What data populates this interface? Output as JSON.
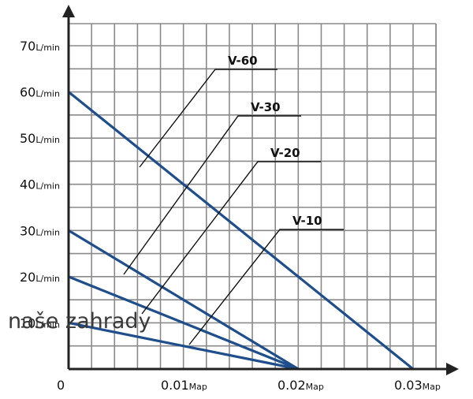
{
  "chart_data": {
    "type": "line",
    "title": "",
    "xlabel": "",
    "ylabel": "",
    "x_unit": "Map",
    "y_unit": "L/min",
    "xlim": [
      0,
      0.03
    ],
    "ylim": [
      0,
      70
    ],
    "grid": true,
    "x_ticks": [
      {
        "value": 0,
        "label": "0",
        "unit": ""
      },
      {
        "value": 0.01,
        "label": "0.01",
        "unit": "Map"
      },
      {
        "value": 0.02,
        "label": "0.02",
        "unit": "Map"
      },
      {
        "value": 0.03,
        "label": "0.03",
        "unit": "Map"
      }
    ],
    "y_ticks": [
      {
        "value": 10,
        "label": "10",
        "unit": "L/min"
      },
      {
        "value": 20,
        "label": "20",
        "unit": "L/min"
      },
      {
        "value": 30,
        "label": "30",
        "unit": "L/min"
      },
      {
        "value": 40,
        "label": "40",
        "unit": "L/min"
      },
      {
        "value": 50,
        "label": "50",
        "unit": "L/min"
      },
      {
        "value": 60,
        "label": "60",
        "unit": "L/min"
      },
      {
        "value": 70,
        "label": "70",
        "unit": "L/min"
      }
    ],
    "series": [
      {
        "name": "V-60",
        "color": "#1f4e8c",
        "points": [
          [
            0,
            60
          ],
          [
            0.03,
            0
          ]
        ]
      },
      {
        "name": "V-30",
        "color": "#1f4e8c",
        "points": [
          [
            0,
            30
          ],
          [
            0.02,
            0
          ]
        ]
      },
      {
        "name": "V-20",
        "color": "#1f4e8c",
        "points": [
          [
            0,
            20
          ],
          [
            0.02,
            0
          ]
        ]
      },
      {
        "name": "V-10",
        "color": "#1f4e8c",
        "points": [
          [
            0,
            10
          ],
          [
            0.02,
            0
          ]
        ]
      }
    ],
    "grid_color": "#8a8a8a",
    "axis_color": "#222222"
  },
  "watermark": "naše zahrady"
}
